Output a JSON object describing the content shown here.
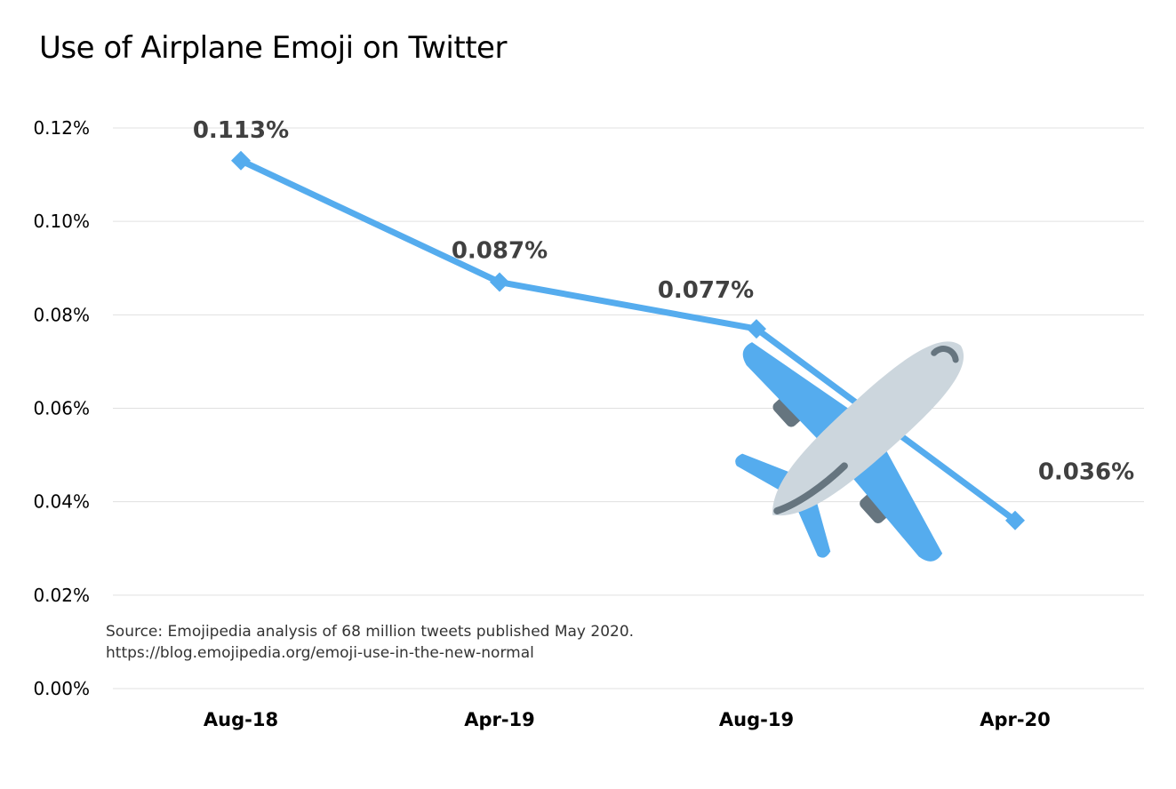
{
  "chart_data": {
    "type": "line",
    "title": "Use of Airplane Emoji on Twitter",
    "categories": [
      "Aug-18",
      "Apr-19",
      "Aug-19",
      "Apr-20"
    ],
    "series": [
      {
        "values": [
          0.113,
          0.087,
          0.077,
          0.036
        ],
        "data_labels": [
          "0.113%",
          "0.087%",
          "0.077%",
          "0.036%"
        ]
      }
    ],
    "yticks": [
      0,
      0.02,
      0.04,
      0.06,
      0.08,
      0.1,
      0.12
    ],
    "ytick_labels": [
      "0.00%",
      "0.02%",
      "0.04%",
      "0.06%",
      "0.08%",
      "0.10%",
      "0.12%"
    ],
    "ylim": [
      0,
      0.12
    ],
    "grid": true,
    "legend": "none",
    "annotation": {
      "line1": "Source: Emojipedia analysis of 68 million tweets published May 2020.",
      "line2": "https://blog.emojipedia.org/emoji-use-in-the-new-normal"
    },
    "decoration": "airplane-emoji",
    "colors": {
      "line": "#55acee",
      "label": "#404040",
      "grid": "#e0e0e0",
      "plane_body": "#ccd6dd",
      "plane_wing": "#55acee",
      "plane_dark": "#66757f"
    }
  }
}
